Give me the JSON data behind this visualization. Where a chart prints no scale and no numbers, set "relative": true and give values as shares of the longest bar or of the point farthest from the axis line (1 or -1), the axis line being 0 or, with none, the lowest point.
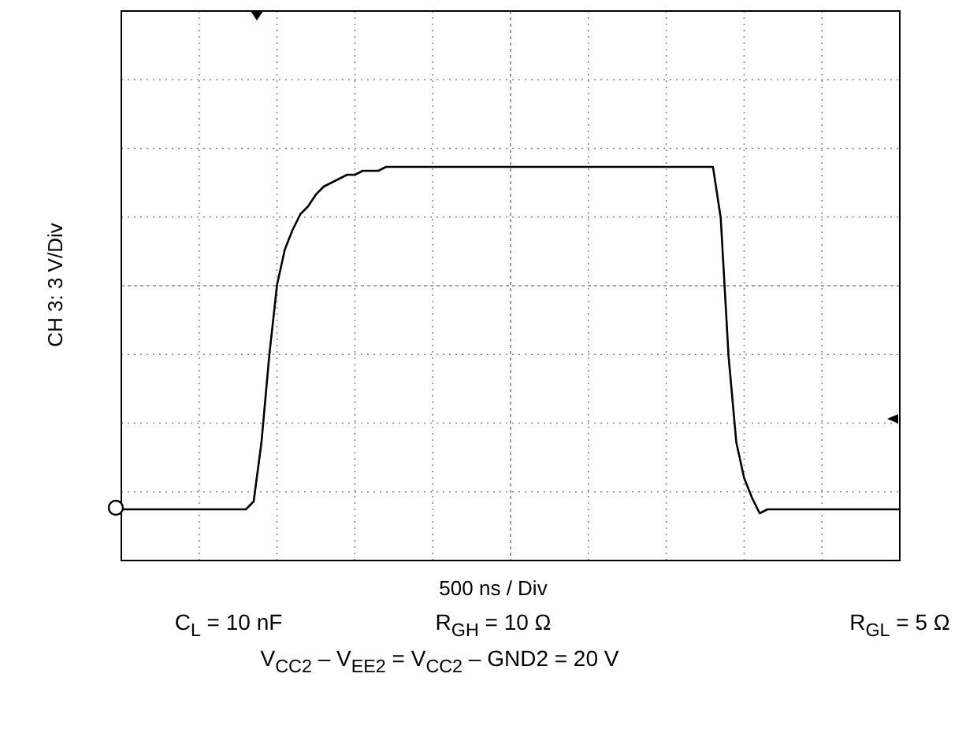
{
  "chart_data": {
    "type": "line",
    "relative": true,
    "grid": true,
    "marker": "none",
    "line_style": "solid",
    "ylabel": "CH 3: 3 V/Div",
    "xlabel": "500 ns / Div",
    "annotations": [
      "C$_{L}$ = 10 nF",
      "R$_{GH}$ = 10 Ω",
      "R$_{GL}$ = 5 Ω",
      "V$_{CC2}$ – V$_{EE2}$ = V$_{CC2}$ – GND2 = 20 V"
    ],
    "categories": [
      null,
      null,
      null,
      null,
      null,
      null,
      null,
      null,
      null,
      null,
      null,
      null,
      null,
      null,
      null,
      null,
      null,
      null,
      null,
      null,
      null,
      null,
      null,
      null,
      null,
      null,
      null,
      null,
      null,
      null,
      null,
      null,
      null,
      null,
      null,
      null,
      null,
      null,
      null,
      null,
      null,
      null,
      null,
      null,
      null,
      null,
      null,
      null,
      null,
      null,
      null,
      null,
      null,
      null,
      null,
      null,
      null,
      null,
      null,
      null,
      null,
      null,
      null,
      null,
      null,
      null,
      null,
      null,
      null,
      null,
      null,
      null,
      null,
      null,
      null,
      null,
      null,
      null,
      null,
      null,
      null,
      null,
      null,
      null,
      null,
      null,
      null,
      null,
      null,
      null,
      null,
      null,
      null,
      null,
      null,
      null,
      null,
      null,
      null,
      null,
      null
    ],
    "series": [
      {
        "color": "#000000",
        "values": [
          0.13,
          0.13,
          0.13,
          0.13,
          0.13,
          0.13,
          0.13,
          0.13,
          0.13,
          0.13,
          0.13,
          0.13,
          0.13,
          0.13,
          0.13,
          0.13,
          0.13,
          0.15,
          0.3,
          0.52,
          0.7,
          0.79,
          0.84,
          0.88,
          0.9,
          0.93,
          0.95,
          0.96,
          0.97,
          0.98,
          0.98,
          0.99,
          0.99,
          0.99,
          1,
          1,
          1,
          1,
          1,
          1,
          1,
          1,
          1,
          1,
          1,
          1,
          1,
          1,
          1,
          1,
          1,
          1,
          1,
          1,
          1,
          1,
          1,
          1,
          1,
          1,
          1,
          1,
          1,
          1,
          1,
          1,
          1,
          1,
          1,
          1,
          1,
          1,
          1,
          1,
          1,
          1,
          1,
          0.87,
          0.52,
          0.3,
          0.21,
          0.16,
          0.12,
          0.13,
          0.13,
          0.13,
          0.13,
          0.13,
          0.13,
          0.13,
          0.13,
          0.13,
          0.13,
          0.13,
          0.13,
          0.13,
          0.13,
          0.13,
          0.13,
          0.13,
          0.13
        ]
      }
    ]
  }
}
